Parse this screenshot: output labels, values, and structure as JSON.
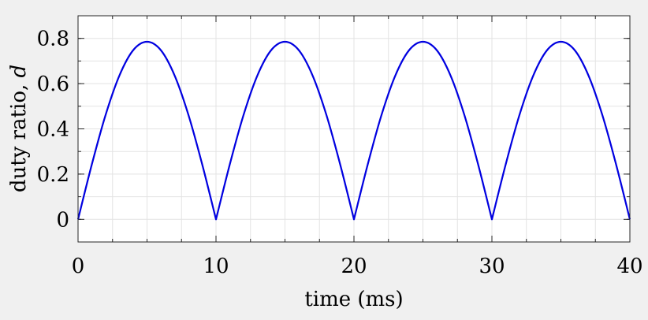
{
  "chart_data": {
    "type": "line",
    "xlabel": "time (ms)",
    "ylabel_text": "duty ratio, ",
    "ylabel_symbol": "d",
    "xlim": [
      0,
      40
    ],
    "ylim": [
      -0.1,
      0.9
    ],
    "xticks": [
      0,
      10,
      20,
      30,
      40
    ],
    "xtick_labels": [
      "0",
      "10",
      "20",
      "30",
      "40"
    ],
    "yticks": [
      0,
      0.2,
      0.4,
      0.6,
      0.8
    ],
    "ytick_labels": [
      "0",
      "0.2",
      "0.4",
      "0.6",
      "0.8"
    ],
    "x_minor_step": 2.5,
    "y_minor_step": 0.1,
    "grid": true,
    "line_color": "#0000e0",
    "series": [
      {
        "x": [
          0,
          1,
          2,
          3,
          4,
          5,
          6,
          7,
          8,
          9,
          10,
          11,
          12,
          13,
          14,
          15,
          16,
          17,
          18,
          19,
          20,
          21,
          22,
          23,
          24,
          25,
          26,
          27,
          28,
          29,
          30,
          31,
          32,
          33,
          34,
          35,
          36,
          37,
          38,
          39,
          40
        ],
        "values": [
          0,
          0.243,
          0.462,
          0.636,
          0.748,
          0.785,
          0.748,
          0.636,
          0.462,
          0.243,
          0,
          0.243,
          0.462,
          0.636,
          0.748,
          0.785,
          0.748,
          0.636,
          0.462,
          0.243,
          0,
          0.243,
          0.462,
          0.636,
          0.748,
          0.785,
          0.748,
          0.636,
          0.462,
          0.243,
          0,
          0.243,
          0.462,
          0.636,
          0.748,
          0.785,
          0.748,
          0.636,
          0.462,
          0.243,
          0
        ]
      }
    ]
  }
}
